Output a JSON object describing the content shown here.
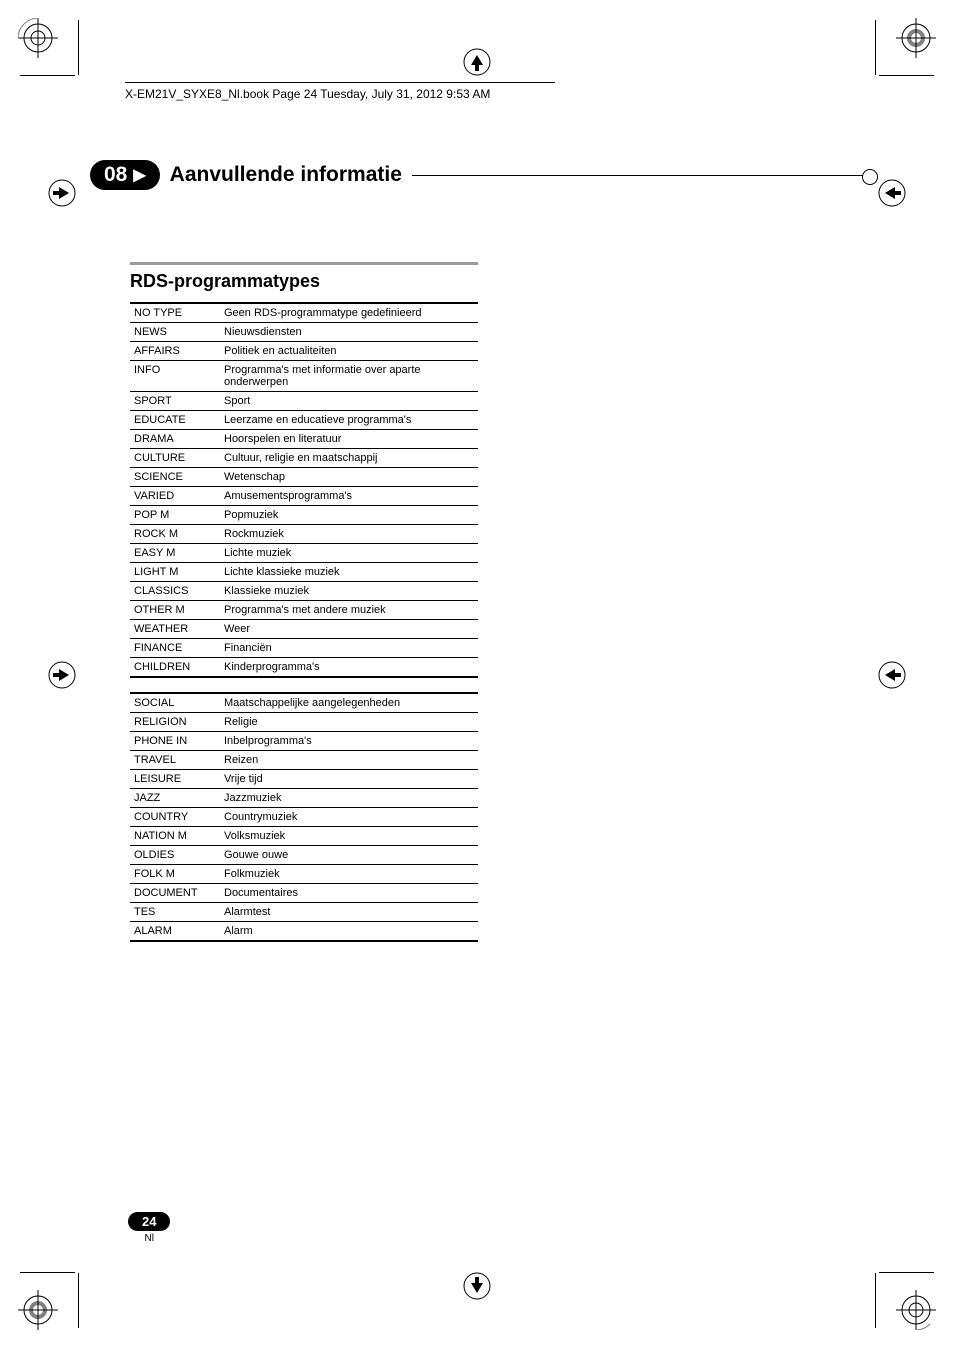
{
  "book_path": "X-EM21V_SYXE8_Nl.book  Page 24  Tuesday, July 31, 2012  9:53 AM",
  "chapter": {
    "number": "08",
    "title": "Aanvullende informatie"
  },
  "section_title": "RDS-programmatypes",
  "table1": {
    "rows": [
      [
        "NO TYPE",
        "Geen RDS-programmatype gedefinieerd"
      ],
      [
        "NEWS",
        "Nieuwsdiensten"
      ],
      [
        "AFFAIRS",
        "Politiek en actualiteiten"
      ],
      [
        "INFO",
        "Programma's met informatie over aparte onderwerpen"
      ],
      [
        "SPORT",
        "Sport"
      ],
      [
        "EDUCATE",
        "Leerzame en educatieve programma's"
      ],
      [
        "DRAMA",
        "Hoorspelen en literatuur"
      ],
      [
        "CULTURE",
        "Cultuur, religie en maatschappij"
      ],
      [
        "SCIENCE",
        "Wetenschap"
      ],
      [
        "VARIED",
        "Amusementsprogramma's"
      ],
      [
        "POP M",
        "Popmuziek"
      ],
      [
        "ROCK M",
        "Rockmuziek"
      ],
      [
        "EASY M",
        "Lichte muziek"
      ],
      [
        "LIGHT M",
        "Lichte klassieke muziek"
      ],
      [
        "CLASSICS",
        "Klassieke muziek"
      ],
      [
        "OTHER M",
        "Programma's met andere muziek"
      ],
      [
        "WEATHER",
        "Weer"
      ],
      [
        "FINANCE",
        "Financiën"
      ],
      [
        "CHILDREN",
        "Kinderprogramma's"
      ]
    ]
  },
  "table2": {
    "rows": [
      [
        "SOCIAL",
        "Maatschappelijke aangelegenheden"
      ],
      [
        "RELIGION",
        "Religie"
      ],
      [
        "PHONE IN",
        "Inbelprogramma's"
      ],
      [
        "TRAVEL",
        "Reizen"
      ],
      [
        "LEISURE",
        "Vrije tijd"
      ],
      [
        "JAZZ",
        "Jazzmuziek"
      ],
      [
        "COUNTRY",
        "Countrymuziek"
      ],
      [
        "NATION M",
        "Volksmuziek"
      ],
      [
        "OLDIES",
        "Gouwe ouwe"
      ],
      [
        "FOLK M",
        "Folkmuziek"
      ],
      [
        "DOCUMENT",
        "Documentaires"
      ],
      [
        "TES",
        "Alarmtest"
      ],
      [
        "ALARM",
        "Alarm"
      ]
    ]
  },
  "page": {
    "number": "24",
    "lang": "Nl"
  },
  "colors": {
    "section_rule": "#9a9a9a"
  }
}
